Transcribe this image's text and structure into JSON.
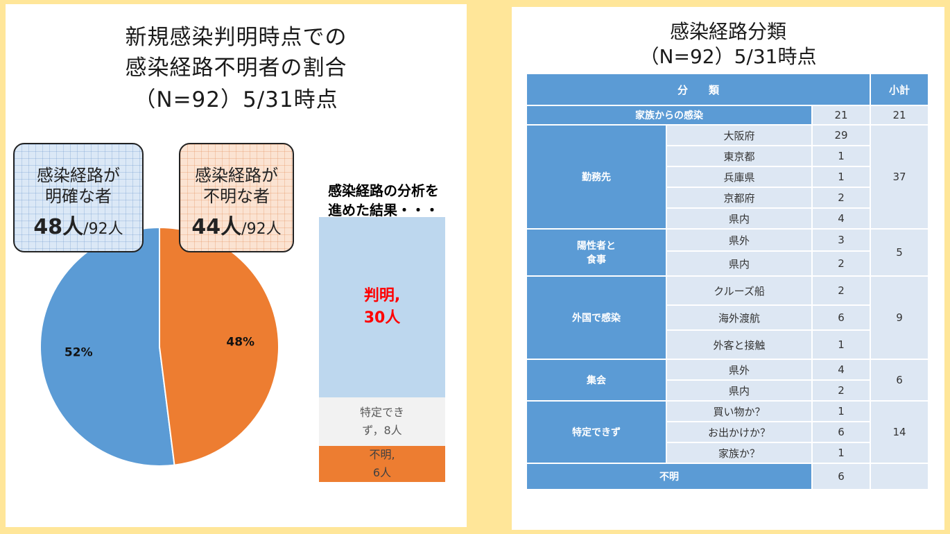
{
  "left": {
    "title_lines": [
      "新規感染判明時点での",
      "感染経路不明者の割合",
      "（N=92）5/31時点"
    ],
    "callout_clear": {
      "line1": "感染経路が",
      "line2": "明確な者",
      "count": "48人",
      "total": "/92人"
    },
    "callout_unclear": {
      "line1": "感染経路が",
      "line2": "不明な者",
      "count": "44人",
      "total": "/92人"
    },
    "analysis_label_lines": [
      "感染経路の分析を",
      "進めた結果・・・"
    ]
  },
  "chart_data": [
    {
      "type": "pie",
      "slices": [
        {
          "label": "52%",
          "value": 52,
          "color": "#5b9bd5"
        },
        {
          "label": "48%",
          "value": 48,
          "color": "#ed7d31"
        }
      ]
    },
    {
      "type": "bar",
      "stacked": true,
      "segments": [
        {
          "label_lines": [
            "判明,",
            "30人"
          ],
          "value": 30,
          "color": "#bdd7ee",
          "text_color": "#ff0000"
        },
        {
          "label_lines": [
            "特定でき",
            "ず，8人"
          ],
          "value": 8,
          "color": "#f2f2f2",
          "text_color": "#595959"
        },
        {
          "label_lines": [
            "不明,",
            "6人"
          ],
          "value": 6,
          "color": "#ed7d31",
          "text_color": "#404040"
        }
      ]
    }
  ],
  "table": {
    "title_lines": [
      "感染経路分類",
      "（N=92）5/31時点"
    ],
    "header": {
      "category": "分　　類",
      "subtotal": "小計"
    },
    "groups": [
      {
        "category": "家族からの感染",
        "rows": [
          {
            "sub": "",
            "count": "21"
          }
        ],
        "subtotal": "21",
        "merged": true
      },
      {
        "category": "勤務先",
        "rows": [
          {
            "sub": "大阪府",
            "count": "29"
          },
          {
            "sub": "東京都",
            "count": "1"
          },
          {
            "sub": "兵庫県",
            "count": "1"
          },
          {
            "sub": "京都府",
            "count": "2"
          },
          {
            "sub": "県内",
            "count": "4"
          }
        ],
        "subtotal": "37"
      },
      {
        "category": "陽性者と\n食事",
        "rows": [
          {
            "sub": "県外",
            "count": "3"
          },
          {
            "sub": "県内",
            "count": "2"
          }
        ],
        "subtotal": "5"
      },
      {
        "category": "外国で感染",
        "rows": [
          {
            "sub": "クルーズ船",
            "count": "2"
          },
          {
            "sub": "海外渡航",
            "count": "6"
          },
          {
            "sub": "外客と接触",
            "count": "1"
          }
        ],
        "subtotal": "9"
      },
      {
        "category": "集会",
        "rows": [
          {
            "sub": "県外",
            "count": "4"
          },
          {
            "sub": "県内",
            "count": "2"
          }
        ],
        "subtotal": "6"
      },
      {
        "category": "特定できず",
        "rows": [
          {
            "sub": "買い物か？",
            "count": "1"
          },
          {
            "sub": "お出かけか？",
            "count": "6"
          },
          {
            "sub": "家族か？",
            "count": "1"
          }
        ],
        "subtotal": "14"
      },
      {
        "category": "不明",
        "rows": [
          {
            "sub": "",
            "count": "6"
          }
        ],
        "subtotal": "",
        "merged": true
      }
    ]
  }
}
